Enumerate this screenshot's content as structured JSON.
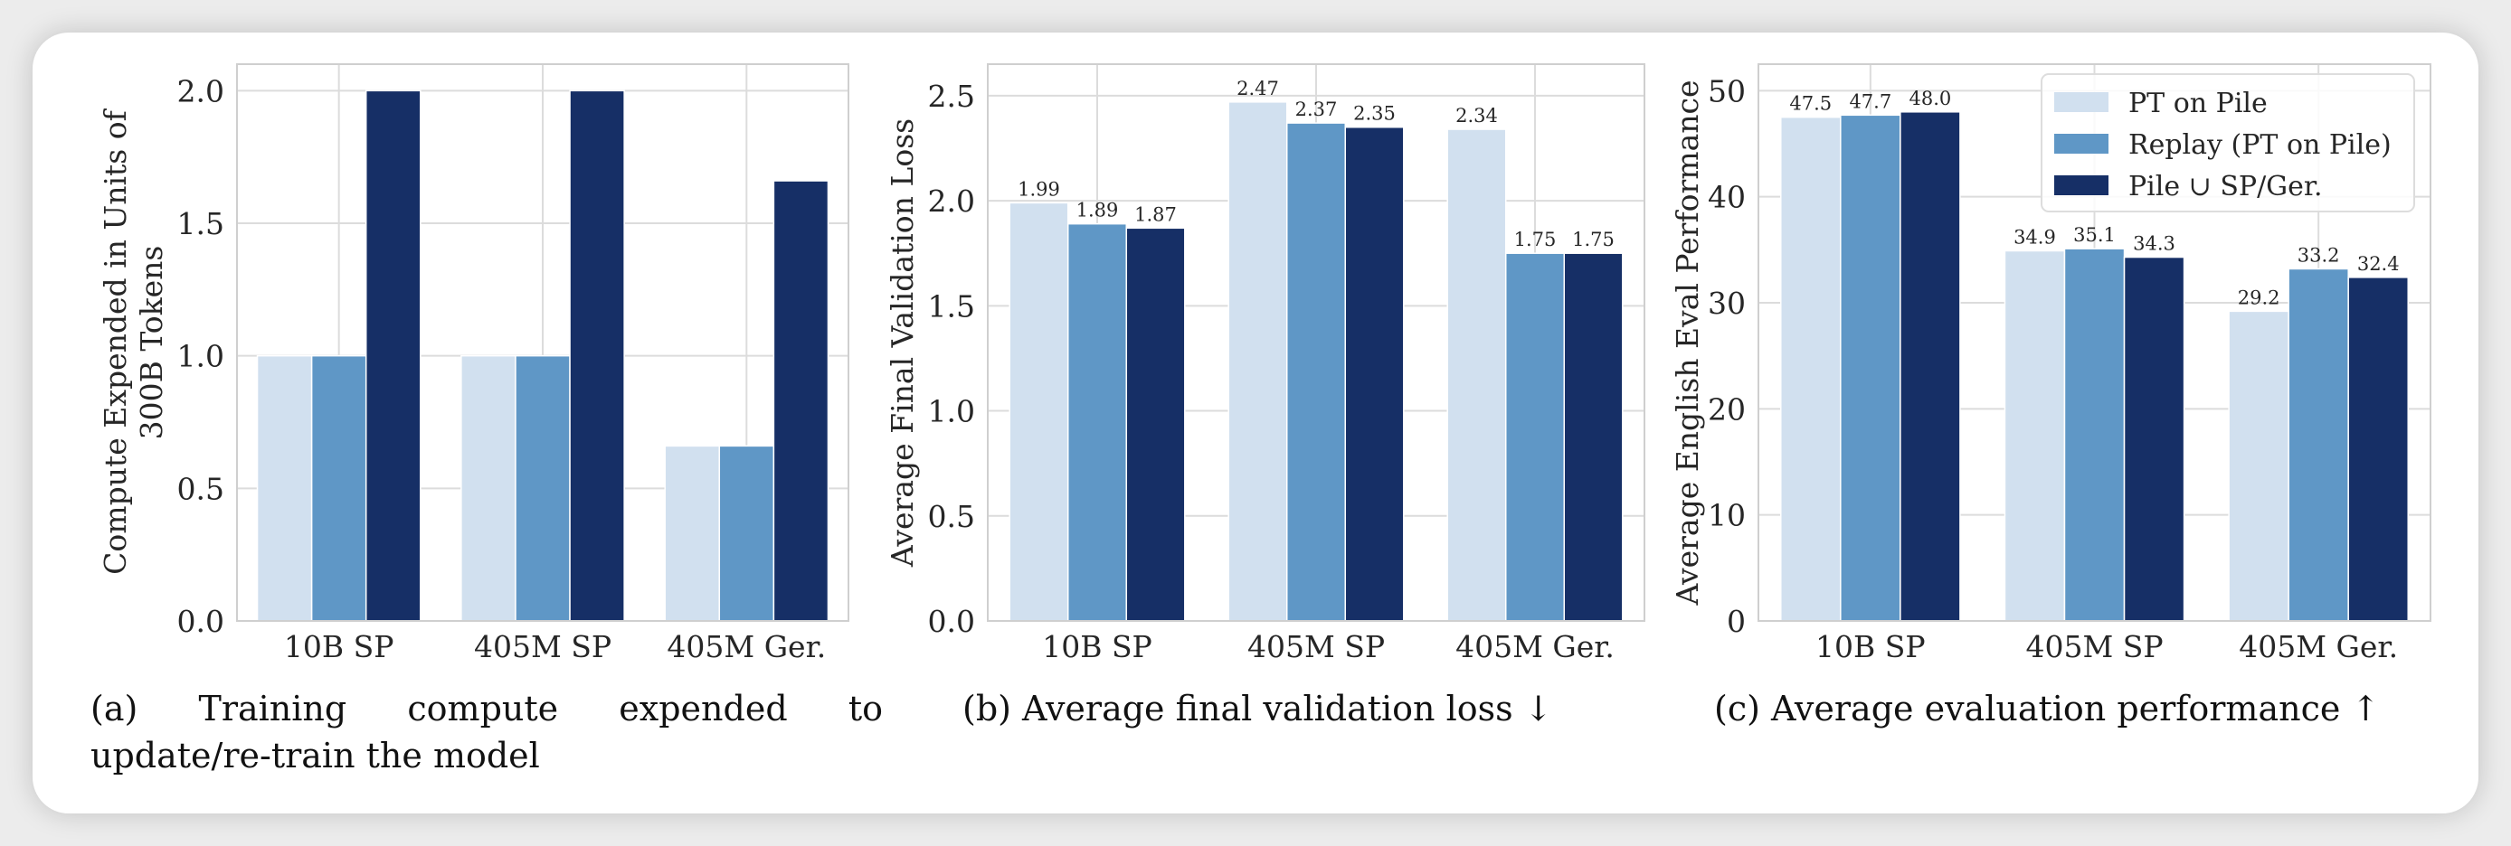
{
  "colors": {
    "series": [
      "#d1e0ef",
      "#5f97c6",
      "#162f66"
    ],
    "grid": "#dcdcdc",
    "frame": "#cfcfcf",
    "text": "#262626"
  },
  "legend": {
    "location": "upper-right (panel c)",
    "entries": [
      "PT on Pile",
      "Replay (PT on Pile)",
      "Pile ∪ SP/Ger."
    ]
  },
  "captions": {
    "a_line1_words": [
      "(a)",
      "Training",
      "compute",
      "expended",
      "to"
    ],
    "a_line2": "update/re-train the model",
    "b": "(b) Average final validation loss ↓",
    "c": "(c) Average evaluation performance ↑"
  },
  "chart_data": [
    {
      "type": "bar",
      "id": "a",
      "title": "",
      "xlabel": "",
      "ylabel_lines": [
        "Compute Expended in Units of",
        "300B Tokens"
      ],
      "categories": [
        "10B SP",
        "405M SP",
        "405M Ger."
      ],
      "series": [
        {
          "name": "PT on Pile",
          "values": [
            1.0,
            1.0,
            0.66
          ]
        },
        {
          "name": "Replay (PT on Pile)",
          "values": [
            1.0,
            1.0,
            0.66
          ]
        },
        {
          "name": "Pile ∪ SP/Ger.",
          "values": [
            2.0,
            2.0,
            1.66
          ]
        }
      ],
      "show_data_labels": false,
      "ylim": [
        0,
        2.1
      ],
      "yticks": [
        0.0,
        0.5,
        1.0,
        1.5,
        2.0
      ],
      "ytick_labels": [
        "0.0",
        "0.5",
        "1.0",
        "1.5",
        "2.0"
      ],
      "grid": true
    },
    {
      "type": "bar",
      "id": "b",
      "title": "",
      "xlabel": "",
      "ylabel_lines": [
        "Average Final Validation Loss"
      ],
      "categories": [
        "10B SP",
        "405M SP",
        "405M Ger."
      ],
      "series": [
        {
          "name": "PT on Pile",
          "values": [
            1.99,
            2.47,
            2.34
          ],
          "labels": [
            "1.99",
            "2.47",
            "2.34"
          ]
        },
        {
          "name": "Replay (PT on Pile)",
          "values": [
            1.89,
            2.37,
            1.75
          ],
          "labels": [
            "1.89",
            "2.37",
            "1.75"
          ]
        },
        {
          "name": "Pile ∪ SP/Ger.",
          "values": [
            1.87,
            2.35,
            1.75
          ],
          "labels": [
            "1.87",
            "2.35",
            "1.75"
          ]
        }
      ],
      "show_data_labels": true,
      "ylim": [
        0,
        2.65
      ],
      "yticks": [
        0.0,
        0.5,
        1.0,
        1.5,
        2.0,
        2.5
      ],
      "ytick_labels": [
        "0.0",
        "0.5",
        "1.0",
        "1.5",
        "2.0",
        "2.5"
      ],
      "grid": true
    },
    {
      "type": "bar",
      "id": "c",
      "title": "",
      "xlabel": "",
      "ylabel_lines": [
        "Average English Eval Performance"
      ],
      "categories": [
        "10B SP",
        "405M SP",
        "405M Ger."
      ],
      "series": [
        {
          "name": "PT on Pile",
          "values": [
            47.5,
            34.9,
            29.2
          ],
          "labels": [
            "47.5",
            "34.9",
            "29.2"
          ]
        },
        {
          "name": "Replay (PT on Pile)",
          "values": [
            47.7,
            35.1,
            33.2
          ],
          "labels": [
            "47.7",
            "35.1",
            "33.2"
          ]
        },
        {
          "name": "Pile ∪ SP/Ger.",
          "values": [
            48.0,
            34.3,
            32.4
          ],
          "labels": [
            "48.0",
            "34.3",
            "32.4"
          ]
        }
      ],
      "show_data_labels": true,
      "ylim": [
        0,
        52.5
      ],
      "yticks": [
        0,
        10,
        20,
        30,
        40,
        50
      ],
      "ytick_labels": [
        "0",
        "10",
        "20",
        "30",
        "40",
        "50"
      ],
      "grid": true,
      "legend": true
    }
  ]
}
